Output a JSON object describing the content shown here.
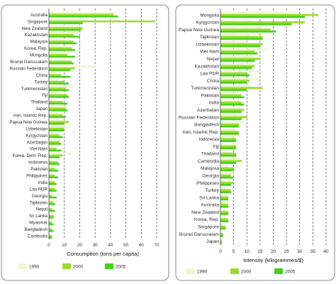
{
  "colors": {
    "y1990": "#ecf7d3",
    "y2000": "#9cdc2c",
    "y2005": "#45d11b",
    "divider": "#444444",
    "grid": "#b8b8b8"
  },
  "chart_data": [
    {
      "type": "bar",
      "orientation": "horizontal",
      "title": "",
      "xlabel": "Consumption (tons per capita)",
      "ylabel": "",
      "xlim": [
        0,
        70
      ],
      "xticks": [
        0,
        10,
        20,
        30,
        40,
        50,
        60,
        70
      ],
      "grid": "vertical dashed lines",
      "legend_position": "bottom",
      "categories": [
        "Australia",
        "Singapore",
        "New Zealand",
        "Kazakhstan",
        "Malaysia",
        "Korea, Rep.",
        "Mongolia",
        "Brunei Darussalam",
        "Russian Federation",
        "China",
        "Turkey",
        "Turkmenistan",
        "Fiji",
        "Thailand",
        "Japan",
        "Iran, Islamic Rep.",
        "Papua New Guinea",
        "Uzbekistan",
        "Kyrgyzstan",
        "Azerbaijan",
        "Viet Nam",
        "Korea, Dem. Rep.",
        "Indonesia",
        "Pakistan",
        "Philippines",
        "India",
        "Lao PDR",
        "Georgia",
        "Tajikistan",
        "Nepal",
        "Sri Lanka",
        "Myanmar",
        "Bangladesh",
        "Cambodia"
      ],
      "series": [
        {
          "name": "1990",
          "values": [
            42,
            25,
            19,
            21,
            10,
            12,
            13,
            13,
            31,
            5,
            6,
            16,
            8,
            4,
            12,
            6,
            9,
            14,
            7,
            8,
            2,
            15,
            3,
            3,
            2,
            2,
            3,
            8,
            6,
            1,
            2,
            1,
            1,
            1
          ]
        },
        {
          "name": "2000",
          "values": [
            42,
            69,
            22,
            16,
            16,
            15,
            12,
            15,
            17,
            8,
            10,
            11,
            12,
            9,
            11,
            9,
            13,
            10,
            7,
            7,
            5,
            9,
            6,
            4,
            4,
            4,
            4,
            2,
            3,
            2,
            3,
            2,
            2,
            2
          ]
        },
        {
          "name": "2005",
          "values": [
            45,
            22,
            21,
            20,
            18,
            17,
            17,
            16,
            14,
            14,
            13,
            13,
            13,
            12,
            12,
            11,
            10,
            10,
            9,
            8,
            8,
            7,
            7,
            6,
            6,
            5,
            5,
            5,
            4,
            4,
            3,
            3,
            3,
            2
          ]
        }
      ]
    },
    {
      "type": "bar",
      "orientation": "horizontal",
      "title": "",
      "xlabel": "Intensity (kilogrammes/$)",
      "ylabel": "",
      "xlim": [
        0,
        40
      ],
      "xticks": [
        0,
        5,
        10,
        15,
        20,
        25,
        30,
        35,
        40
      ],
      "grid": "vertical dashed lines",
      "legend_position": "bottom",
      "categories": [
        "Mongolia",
        "Kyrgyzstan",
        "Papua New Guinea",
        "Tajikistan",
        "Uzbekistan",
        "Viet Nam",
        "Nepal",
        "Kazakhstan",
        "Lao PDR",
        "China",
        "Turkmenistan",
        "Pakistan",
        "India",
        "Azerbaijan",
        "Russian Federation",
        "Bangladesh",
        "Iran, Islamic Rep.",
        "Indonesia",
        "Fiji",
        "Thailand",
        "Cambodia",
        "Malaysia",
        "Georgia",
        "Philippines",
        "Turkey",
        "Sri Lanka",
        "Australia",
        "New Zealand",
        "Korea, Rep.",
        "Singapore",
        "Brunei Darussalam",
        "Japan"
      ],
      "series": [
        {
          "name": "1990",
          "values": [
            29,
            12,
            15,
            11,
            10,
            18,
            13,
            14,
            16,
            16,
            12,
            6,
            6,
            8,
            8,
            9,
            5,
            5,
            7,
            4,
            7,
            3,
            5,
            4,
            3,
            3,
            2,
            2,
            2,
            1,
            1,
            0.5
          ]
        },
        {
          "name": "2000",
          "values": [
            37,
            32,
            19,
            16,
            16,
            13,
            15,
            13,
            10,
            11,
            16,
            8,
            8,
            9,
            10,
            7,
            7,
            6,
            6,
            6,
            8,
            5,
            4,
            5,
            4,
            3,
            3,
            3,
            3,
            2,
            1,
            0.6
          ]
        },
        {
          "name": "2005",
          "values": [
            32,
            27,
            21,
            16,
            15,
            14,
            13,
            12,
            11,
            10,
            10,
            9,
            9,
            8,
            8,
            7,
            7,
            6,
            6,
            6,
            6,
            5,
            5,
            4,
            4,
            3,
            3,
            3,
            3,
            2,
            1,
            0.5
          ]
        }
      ]
    }
  ]
}
